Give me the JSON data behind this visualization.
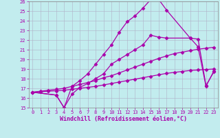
{
  "xlabel": "Windchill (Refroidissement éolien,°C)",
  "xlim": [
    -0.5,
    23.5
  ],
  "ylim": [
    15,
    26
  ],
  "xticks": [
    0,
    1,
    2,
    3,
    4,
    5,
    6,
    7,
    8,
    9,
    10,
    11,
    12,
    13,
    14,
    15,
    16,
    17,
    18,
    19,
    20,
    21,
    22,
    23
  ],
  "yticks": [
    15,
    16,
    17,
    18,
    19,
    20,
    21,
    22,
    23,
    24,
    25,
    26
  ],
  "background_color": "#c2ecee",
  "grid_color": "#b0b0c8",
  "line_color": "#aa00aa",
  "line1_x": [
    0,
    1,
    2,
    3,
    4,
    5,
    6,
    7,
    8,
    9,
    10,
    11,
    12,
    13,
    14,
    15,
    16,
    17,
    18,
    19,
    20,
    21,
    22,
    23
  ],
  "line1_y": [
    16.6,
    16.65,
    16.7,
    16.75,
    16.8,
    16.9,
    17.0,
    17.1,
    17.2,
    17.35,
    17.5,
    17.65,
    17.8,
    17.95,
    18.1,
    18.25,
    18.4,
    18.55,
    18.65,
    18.75,
    18.85,
    18.9,
    18.95,
    19.0
  ],
  "line2_x": [
    0,
    1,
    2,
    3,
    4,
    5,
    6,
    7,
    8,
    9,
    10,
    11,
    12,
    13,
    14,
    15,
    16,
    17,
    18,
    19,
    20,
    21,
    22,
    23
  ],
  "line2_y": [
    16.6,
    16.7,
    16.8,
    16.9,
    17.0,
    17.2,
    17.4,
    17.6,
    17.8,
    18.1,
    18.3,
    18.6,
    18.9,
    19.2,
    19.5,
    19.8,
    20.1,
    20.35,
    20.6,
    20.75,
    20.9,
    21.05,
    21.15,
    21.25
  ],
  "line3_x": [
    0,
    3,
    4,
    5,
    6,
    7,
    8,
    9,
    10,
    11,
    12,
    13,
    14,
    15,
    16,
    17,
    20,
    21,
    22,
    23
  ],
  "line3_y": [
    16.6,
    16.3,
    15.0,
    17.2,
    17.8,
    18.5,
    19.5,
    20.5,
    21.5,
    22.8,
    23.9,
    24.5,
    25.3,
    26.2,
    26.2,
    25.1,
    22.2,
    22.1,
    17.3,
    18.7
  ],
  "line4_x": [
    0,
    3,
    4,
    5,
    6,
    7,
    8,
    9,
    10,
    11,
    12,
    13,
    14,
    15,
    16,
    17,
    20,
    21,
    22,
    23
  ],
  "line4_y": [
    16.6,
    16.3,
    15.0,
    16.4,
    17.1,
    17.5,
    18.0,
    18.5,
    19.5,
    20.0,
    20.5,
    21.0,
    21.5,
    22.5,
    22.3,
    22.2,
    22.2,
    21.3,
    17.2,
    18.8
  ],
  "marker": "D",
  "markersize": 2.5,
  "linewidth": 0.9,
  "tick_fontsize": 5,
  "xlabel_fontsize": 6
}
